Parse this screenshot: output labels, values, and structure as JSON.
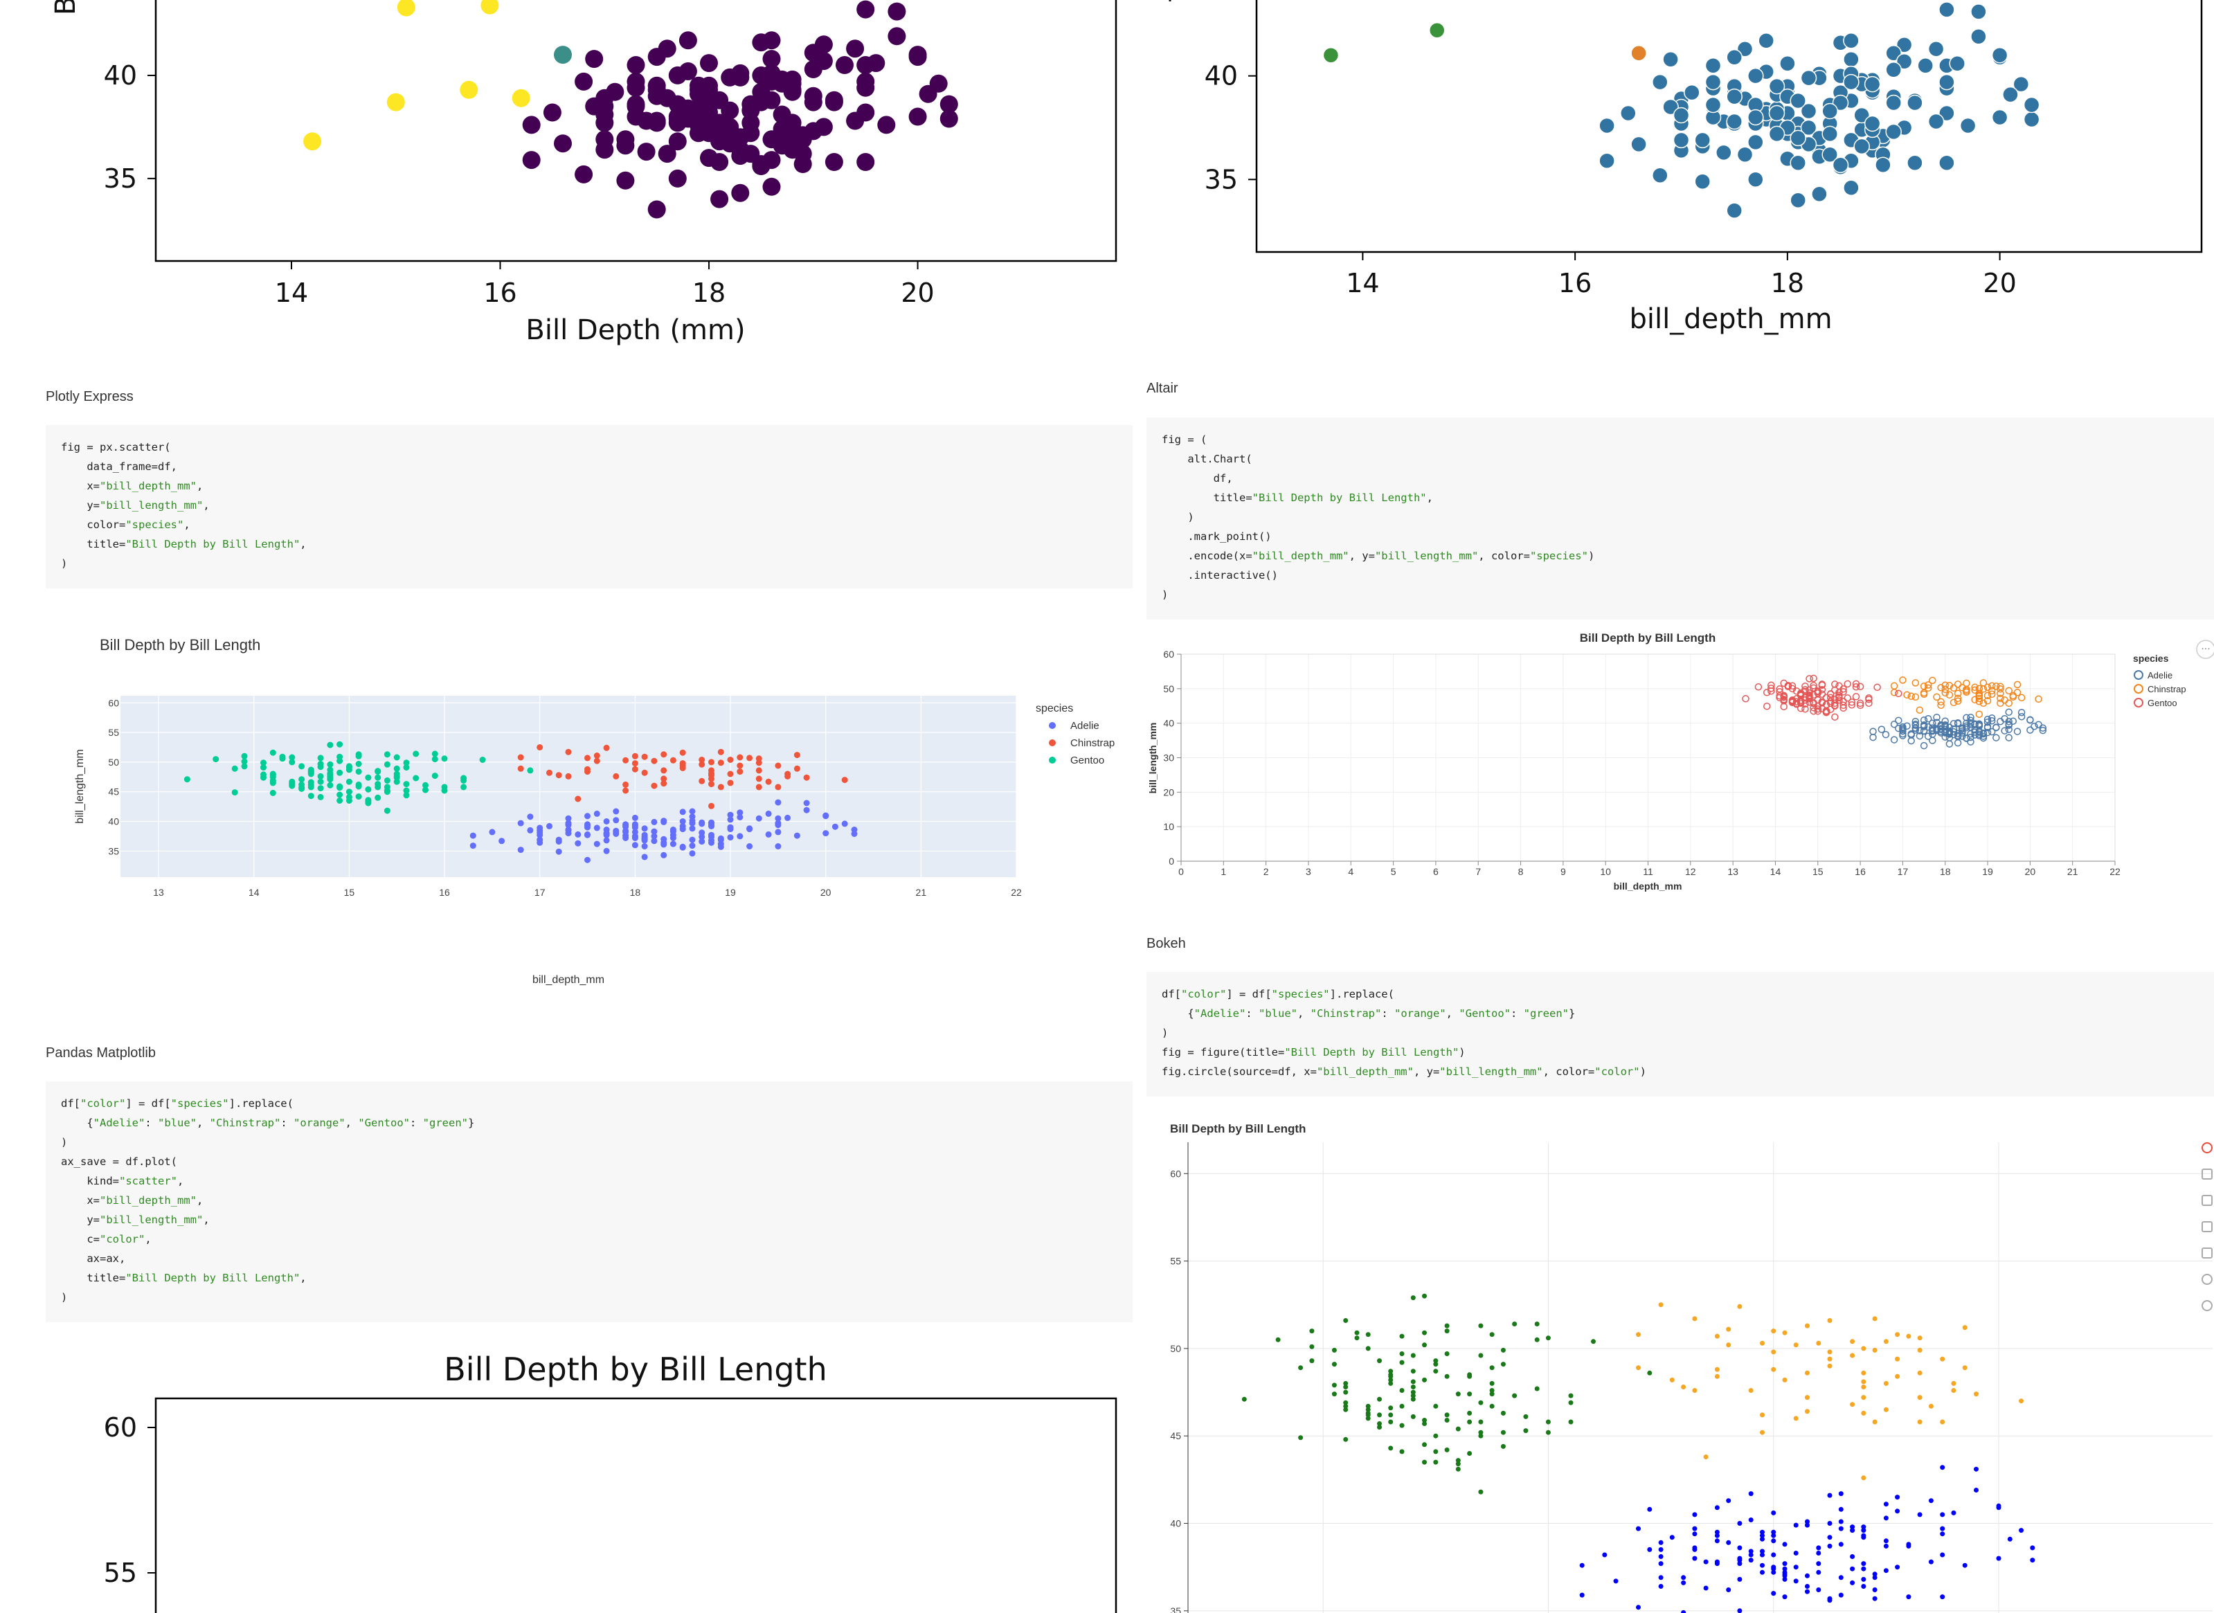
{
  "sections": {
    "plotly": "Plotly Express",
    "altair": "Altair",
    "pandas": "Pandas Matplotlib",
    "bokeh": "Bokeh"
  },
  "code": {
    "plotly": [
      "fig = px.scatter(",
      "    data_frame=df,",
      "    x=\"bill_depth_mm\",",
      "    y=\"bill_length_mm\",",
      "    color=\"species\",",
      "    title=\"Bill Depth by Bill Length\",",
      ")"
    ],
    "altair": [
      "fig = (",
      "    alt.Chart(",
      "        df,",
      "        title=\"Bill Depth by Bill Length\",",
      "    )",
      "    .mark_point()",
      "    .encode(x=\"bill_depth_mm\", y=\"bill_length_mm\", color=\"species\")",
      "    .interactive()",
      ")"
    ],
    "pandas": [
      "df[\"color\"] = df[\"species\"].replace(",
      "    {\"Adelie\": \"blue\", \"Chinstrap\": \"orange\", \"Gentoo\": \"green\"}",
      ")",
      "ax_save = df.plot(",
      "    kind=\"scatter\",",
      "    x=\"bill_depth_mm\",",
      "    y=\"bill_length_mm\",",
      "    c=\"color\",",
      "    ax=ax,",
      "    title=\"Bill Depth by Bill Length\",",
      ")"
    ],
    "bokeh": [
      "df[\"color\"] = df[\"species\"].replace(",
      "    {\"Adelie\": \"blue\", \"Chinstrap\": \"orange\", \"Gentoo\": \"green\"}",
      ")",
      "fig = figure(title=\"Bill Depth by Bill Length\")",
      "fig.circle(source=df, x=\"bill_depth_mm\", y=\"bill_length_mm\", color=\"color\")"
    ]
  },
  "colors": {
    "adelie_plotly": "#636efa",
    "chinstrap_plotly": "#ef553b",
    "gentoo_plotly": "#00cc96",
    "adelie_altair": "#4c78a8",
    "chinstrap_altair": "#f58518",
    "gentoo_altair": "#e45756",
    "blue": "#0000ff",
    "orange": "#f5a623",
    "green": "#1a7a1a",
    "viridis_dark": "#440154",
    "viridis_teal": "#3b8f88",
    "viridis_yellow": "#fde725",
    "seaborn_blue": "#3274a1",
    "seaborn_orange": "#e1812c",
    "seaborn_green": "#3a923a"
  },
  "chart_data": [
    {
      "id": "matplotlib-top-left",
      "type": "scatter",
      "title": "",
      "xlabel": "Bill Depth (mm)",
      "ylabel": "",
      "xticks": [
        14,
        16,
        18,
        20
      ],
      "yticks": [
        35,
        40
      ],
      "xlim": [
        12.7,
        21.9
      ],
      "ylim": [
        31,
        45
      ]
    },
    {
      "id": "seaborn-top-right",
      "type": "scatter",
      "title": "",
      "xlabel": "bill_depth_mm",
      "ylabel": "",
      "xticks": [
        14,
        16,
        18,
        20
      ],
      "yticks": [
        35,
        40
      ],
      "xlim": [
        13.0,
        21.9
      ],
      "ylim": [
        31.5,
        45
      ]
    },
    {
      "id": "plotly",
      "type": "scatter",
      "title": "Bill Depth by Bill Length",
      "xlabel": "bill_depth_mm",
      "ylabel": "bill_length_mm",
      "xticks": [
        13,
        14,
        15,
        16,
        17,
        18,
        19,
        20,
        21,
        22
      ],
      "yticks": [
        35,
        40,
        45,
        50,
        55,
        60
      ],
      "xlim": [
        12.6,
        22
      ],
      "ylim": [
        30.6,
        61.2
      ],
      "legend_title": "species",
      "series": [
        {
          "name": "Adelie"
        },
        {
          "name": "Chinstrap"
        },
        {
          "name": "Gentoo"
        }
      ]
    },
    {
      "id": "altair",
      "type": "scatter",
      "title": "Bill Depth by Bill Length",
      "xlabel": "bill_depth_mm",
      "ylabel": "bill_length_mm",
      "xticks": [
        0,
        1,
        2,
        3,
        4,
        5,
        6,
        7,
        8,
        9,
        10,
        11,
        12,
        13,
        14,
        15,
        16,
        17,
        18,
        19,
        20,
        21,
        22
      ],
      "yticks": [
        0,
        10,
        20,
        30,
        40,
        50,
        60
      ],
      "xlim": [
        0,
        22
      ],
      "ylim": [
        0,
        60
      ],
      "legend_title": "species",
      "series": [
        {
          "name": "Adelie"
        },
        {
          "name": "Chinstrap"
        },
        {
          "name": "Gentoo"
        }
      ]
    },
    {
      "id": "pandas-matplotlib",
      "type": "scatter",
      "title": "Bill Depth by Bill Length",
      "xlabel": "",
      "ylabel": "",
      "yticks": [
        55,
        60
      ],
      "xlim": [
        12.7,
        21.9
      ],
      "ylim": [
        51,
        61
      ]
    },
    {
      "id": "bokeh",
      "type": "scatter",
      "title": "Bill Depth by Bill Length",
      "xlabel": "",
      "ylabel": "",
      "yticks": [
        35,
        40,
        45,
        50,
        55,
        60
      ],
      "xlim": [
        12.8,
        21.9
      ],
      "ylim": [
        32.5,
        61
      ]
    }
  ]
}
